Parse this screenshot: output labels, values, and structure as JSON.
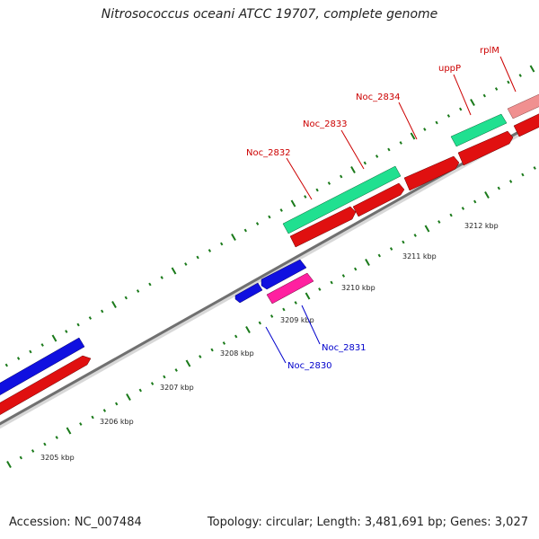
{
  "title": "Nitrosococcus oceani ATCC 19707, complete genome",
  "footer": {
    "accession": "Accession: NC_007484",
    "stats": "Topology: circular; Length: 3,481,691 bp; Genes: 3,027"
  },
  "colors": {
    "tick": "#1a7a1a",
    "backbone": "#707070",
    "forward_gene": "#e01010",
    "reverse_gene": "#1010e0",
    "rna_gene": "#20e090",
    "pink_gene": "#ff20a0",
    "pseudo_gene": "#f09090",
    "label_red": "#cc0000",
    "label_blue": "#0000cc"
  },
  "scale": {
    "tick_labels": [
      "3205 kbp",
      "3206 kbp",
      "3207 kbp",
      "3208 kbp",
      "3209 kbp",
      "3210 kbp",
      "3211 kbp",
      "3212 kbp"
    ]
  },
  "gene_labels": [
    {
      "name": "Noc_2832",
      "color": "red"
    },
    {
      "name": "Noc_2833",
      "color": "red"
    },
    {
      "name": "Noc_2834",
      "color": "red"
    },
    {
      "name": "uppP",
      "color": "red"
    },
    {
      "name": "rplM",
      "color": "red"
    },
    {
      "name": "Noc_2831",
      "color": "blue"
    },
    {
      "name": "Noc_2830",
      "color": "blue"
    }
  ]
}
